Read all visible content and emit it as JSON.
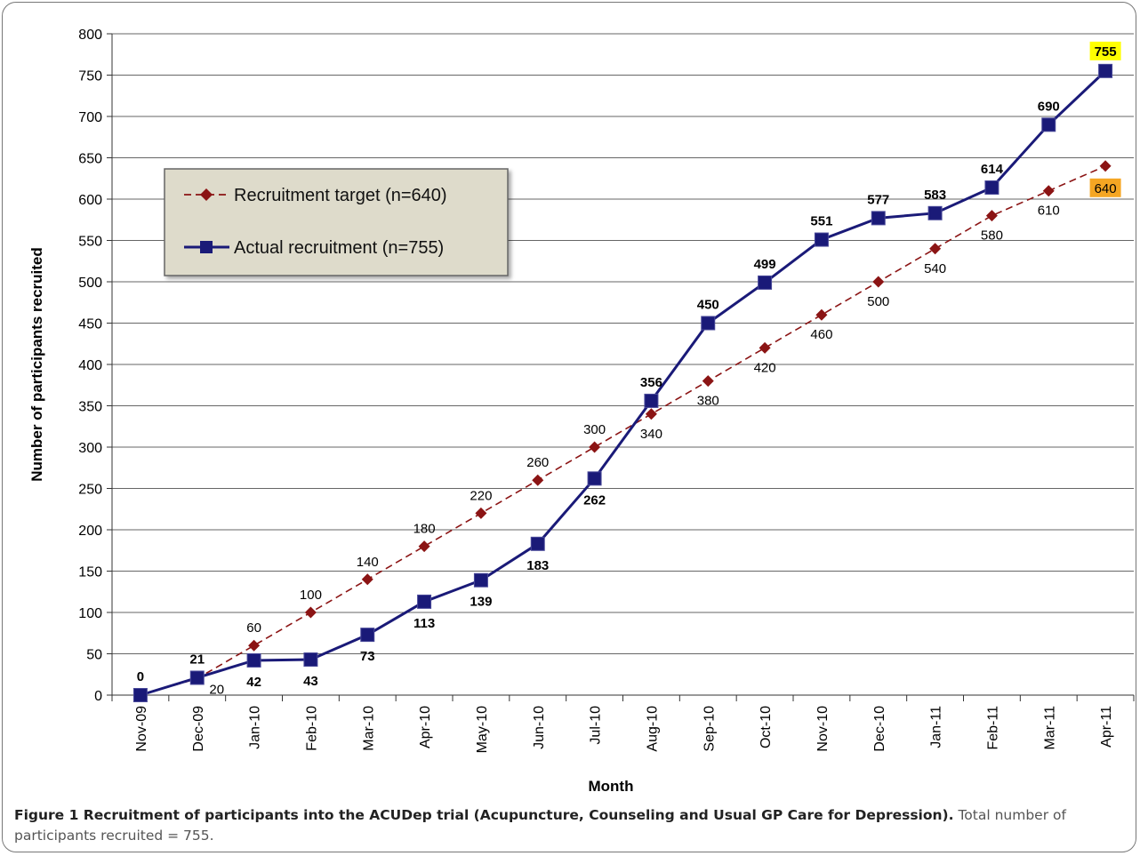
{
  "chart_data": {
    "type": "line",
    "xlabel": "Month",
    "ylabel": "Number of participants recruited",
    "ylim": [
      0,
      800
    ],
    "yticks": [
      0,
      50,
      100,
      150,
      200,
      250,
      300,
      350,
      400,
      450,
      500,
      550,
      600,
      650,
      700,
      750,
      800
    ],
    "grid": true,
    "legend_position": "top-left",
    "categories": [
      "Nov-09",
      "Dec-09",
      "Jan-10",
      "Feb-10",
      "Mar-10",
      "Apr-10",
      "May-10",
      "Jun-10",
      "Jul-10",
      "Aug-10",
      "Sep-10",
      "Oct-10",
      "Nov-10",
      "Dec-10",
      "Jan-11",
      "Feb-11",
      "Mar-11",
      "Apr-11"
    ],
    "series": [
      {
        "name": "Recruitment target (n=640)",
        "color": "#8b1414",
        "line_style": "dashed",
        "marker": "diamond",
        "values": [
          0,
          20,
          60,
          100,
          140,
          180,
          220,
          260,
          300,
          340,
          380,
          420,
          460,
          500,
          540,
          580,
          610,
          640
        ],
        "labels": [
          "",
          "20",
          "60",
          "100",
          "140",
          "180",
          "220",
          "260",
          "300",
          "340",
          "380",
          "420",
          "460",
          "500",
          "540",
          "580",
          "610",
          "640"
        ]
      },
      {
        "name": "Actual recruitment (n=755)",
        "color": "#1a1a78",
        "line_style": "solid",
        "marker": "square",
        "values": [
          0,
          21,
          42,
          43,
          73,
          113,
          139,
          183,
          262,
          356,
          450,
          499,
          551,
          577,
          583,
          614,
          690,
          755
        ],
        "labels": [
          "0",
          "21",
          "42",
          "43",
          "73",
          "113",
          "139",
          "183",
          "262",
          "356",
          "450",
          "499",
          "551",
          "577",
          "583",
          "614",
          "690",
          "755"
        ]
      }
    ],
    "highlight_colors": {
      "actual_last": "#ffff00",
      "target_last": "#f5a623"
    }
  },
  "caption": {
    "bold": "Figure 1 Recruitment of participants into the ACUDep trial (Acupuncture, Counseling and Usual GP Care for Depression).",
    "normal": "Total number of participants recruited = 755."
  }
}
